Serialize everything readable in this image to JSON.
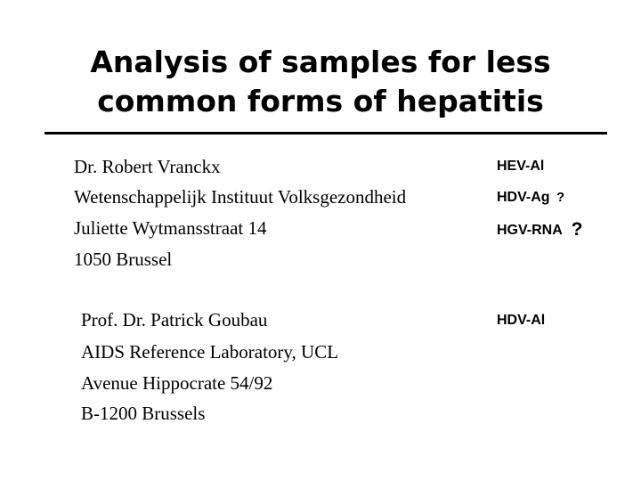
{
  "title": {
    "line1": "Analysis of samples for less",
    "line2": "common forms of hepatitis"
  },
  "contact_1": {
    "name": "Dr. Robert Vranckx",
    "institute": "Wetenschappelijk Instituut Volksgezondheid",
    "street": "Juliette Wytmansstraat 14",
    "city": "1050 Brussel"
  },
  "contact_2": {
    "name": "Prof. Dr. Patrick Goubau",
    "lab": "AIDS Reference Laboratory, UCL",
    "street": "Avenue Hippocrate 54/92",
    "city": "B-1200 Brussels"
  },
  "tests": {
    "hev": "HEV-Al",
    "hdv_ag": "HDV-Ag",
    "hdv_ag_q": "?",
    "hgv": "HGV-RNA",
    "hgv_q": "?",
    "hdv_al": "HDV-Al"
  }
}
